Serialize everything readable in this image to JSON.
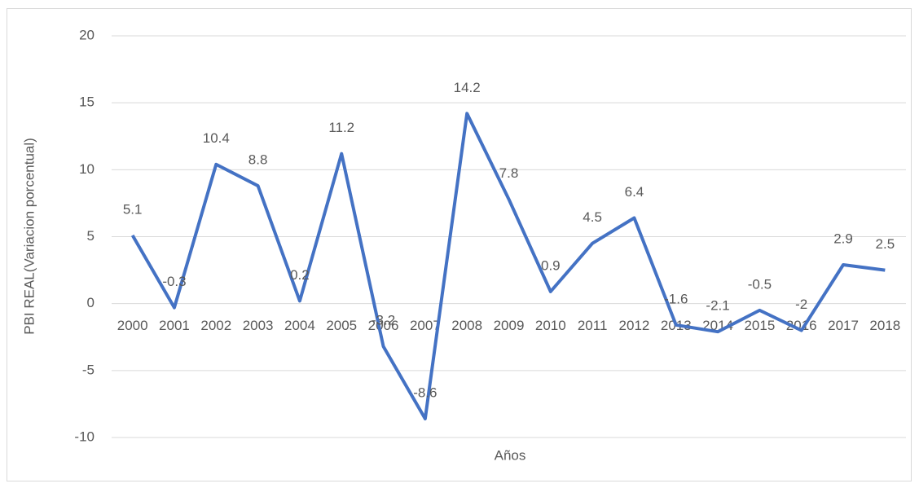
{
  "chart_data": {
    "type": "line",
    "y_label": "PBI REAL(Variacion porcentual)",
    "x_label": "Años",
    "categories": [
      "2000",
      "2001",
      "2002",
      "2003",
      "2004",
      "2005",
      "2006",
      "2007",
      "2008",
      "2009",
      "2010",
      "2011",
      "2012",
      "2013",
      "2014",
      "2015",
      "2016",
      "2017",
      "2018"
    ],
    "values": [
      5.1,
      -0.3,
      10.4,
      8.8,
      0.2,
      11.2,
      -3.2,
      -8.6,
      14.2,
      7.8,
      0.9,
      4.5,
      6.4,
      -1.6,
      -2.1,
      -0.5,
      -2,
      2.9,
      2.5
    ],
    "color": "#4472c4",
    "ylim": [
      -10,
      20
    ],
    "yticks": [
      -10,
      -5,
      0,
      5,
      10,
      15,
      20
    ],
    "grid": true
  }
}
